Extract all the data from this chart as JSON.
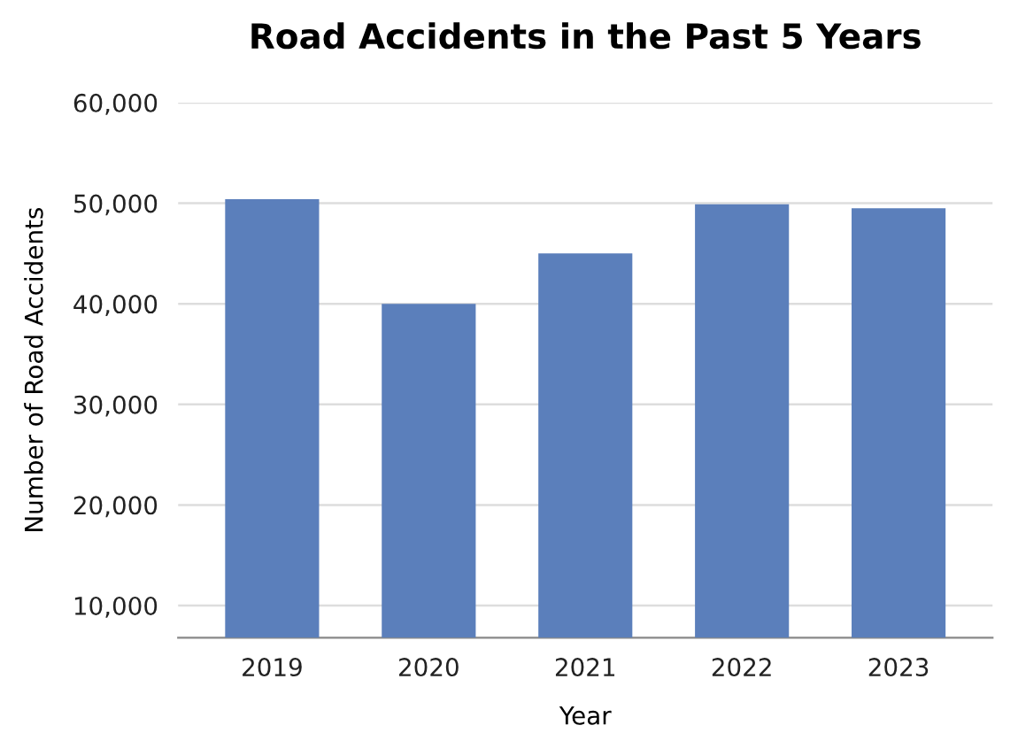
{
  "chart_data": {
    "type": "bar",
    "title": "Road Accidents in the Past 5 Years",
    "xlabel": "Year",
    "ylabel": "Number of Road Accidents",
    "categories": [
      "2019",
      "2020",
      "2021",
      "2022",
      "2023"
    ],
    "values": [
      50400,
      40000,
      45000,
      49900,
      49500
    ],
    "color": "#5b7fbb",
    "ylim": [
      6800,
      60000
    ],
    "yticks": [
      {
        "value": 10000,
        "label": "10,000"
      },
      {
        "value": 20000,
        "label": "20,000"
      },
      {
        "value": 30000,
        "label": "30,000"
      },
      {
        "value": 40000,
        "label": "40,000"
      },
      {
        "value": 50000,
        "label": "50,000"
      },
      {
        "value": 60000,
        "label": "60,000"
      }
    ],
    "grid": "y"
  }
}
